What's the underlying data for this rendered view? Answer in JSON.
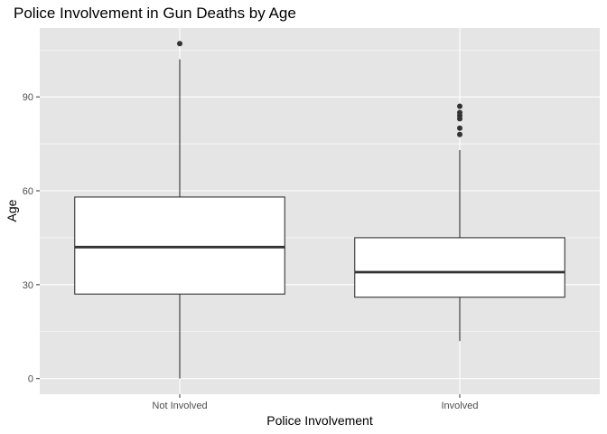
{
  "chart_data": {
    "type": "boxplot",
    "title": "Police Involvement in Gun Deaths by Age",
    "xlabel": "Police Involvement",
    "ylabel": "Age",
    "ylim": [
      -5,
      112
    ],
    "yticks": [
      0,
      30,
      60,
      90
    ],
    "grid": true,
    "categories": [
      "Not Involved",
      "Involved"
    ],
    "boxes": [
      {
        "category": "Not Involved",
        "whisker_low": 0,
        "q1": 27,
        "median": 42,
        "q3": 58,
        "whisker_high": 102,
        "outliers": [
          107
        ]
      },
      {
        "category": "Involved",
        "whisker_low": 12,
        "q1": 26,
        "median": 34,
        "q3": 45,
        "whisker_high": 73,
        "outliers": [
          78,
          80,
          83,
          84,
          85,
          87
        ]
      }
    ],
    "colors": {
      "panel": "#e5e5e5",
      "grid": "#ffffff",
      "box_fill": "#ffffff",
      "stroke": "#333333"
    }
  }
}
